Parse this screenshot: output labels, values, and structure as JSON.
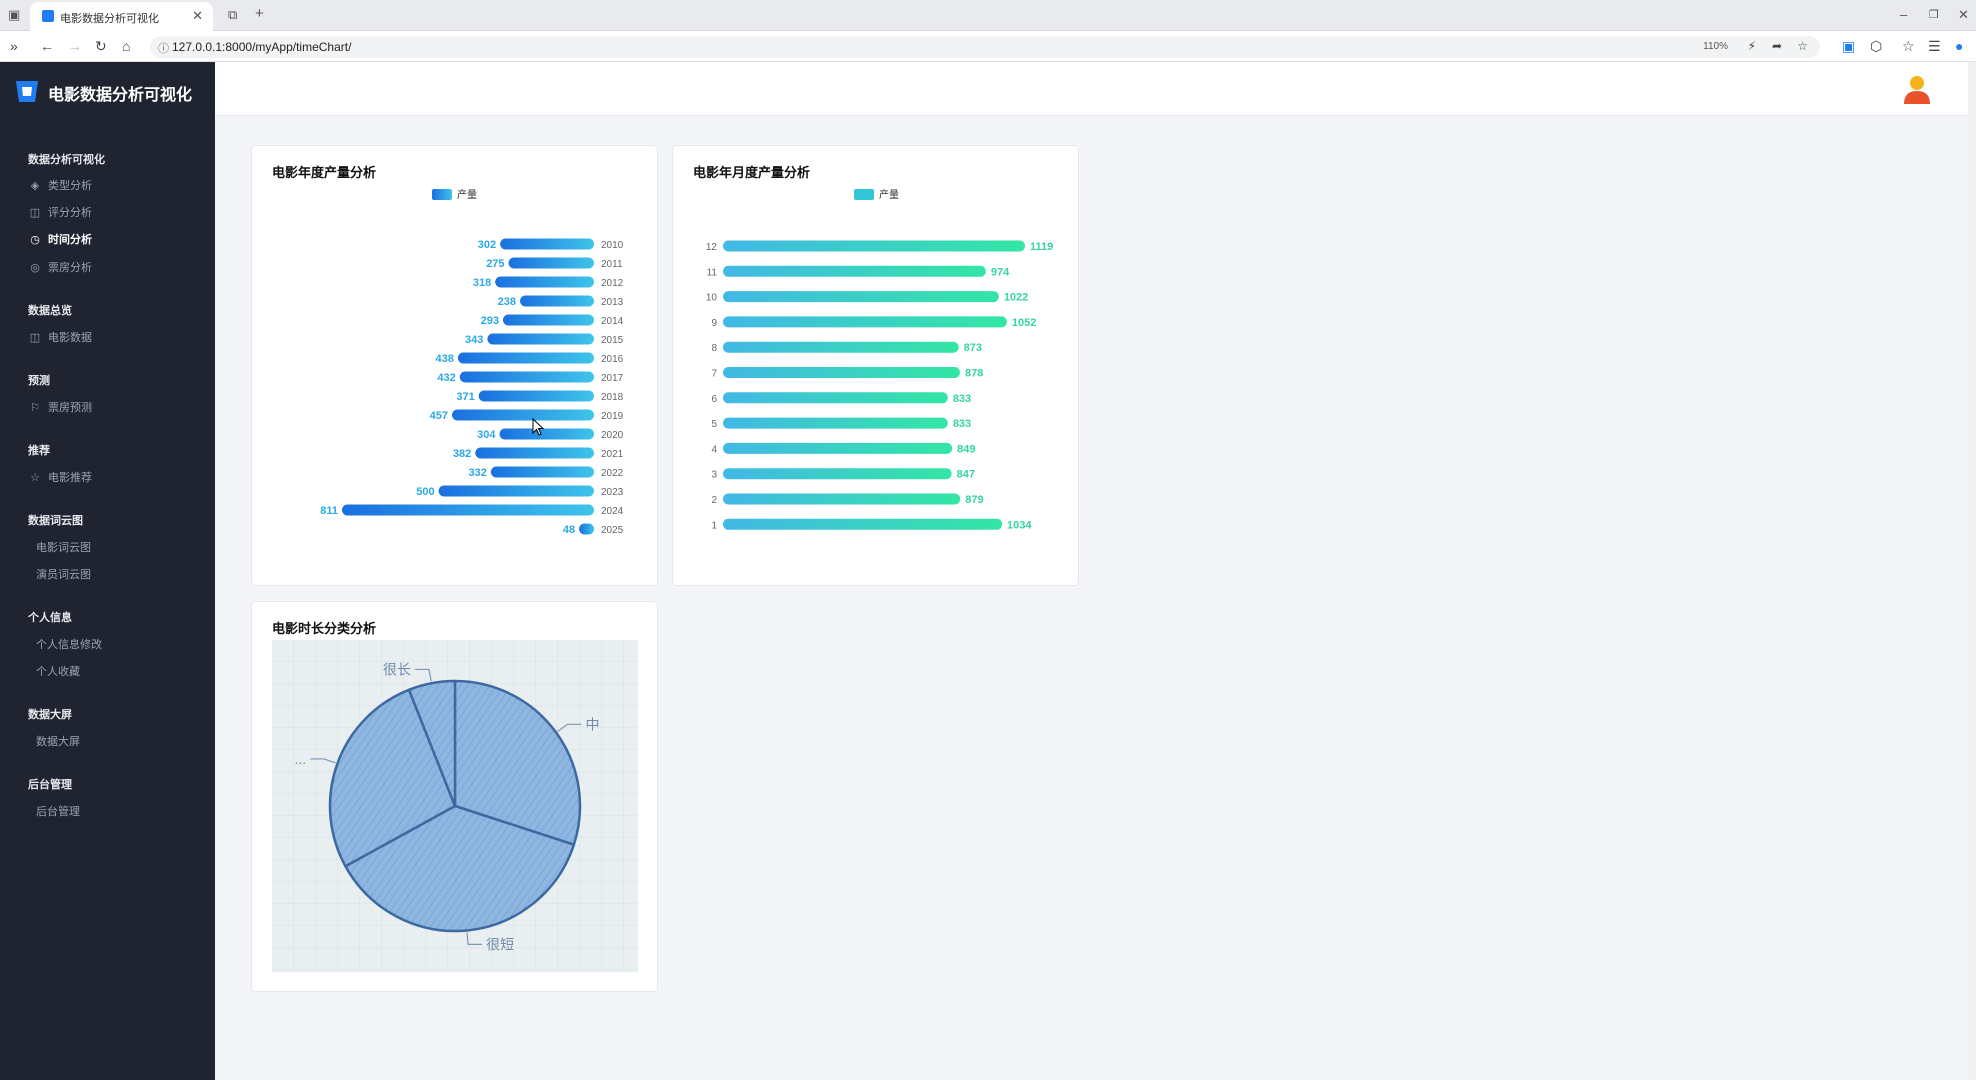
{
  "browser": {
    "tab_title": "电影数据分析可视化",
    "url": "127.0.0.1:8000/myApp/timeChart/",
    "zoom": "110%"
  },
  "sidebar": {
    "brand": "电影数据分析可视化",
    "sections": [
      {
        "title": "数据分析可视化",
        "items": [
          {
            "label": "类型分析",
            "icon": "layers-icon"
          },
          {
            "label": "评分分析",
            "icon": "chart-icon"
          },
          {
            "label": "时间分析",
            "icon": "watch-icon",
            "active": true
          },
          {
            "label": "票房分析",
            "icon": "coin-icon"
          }
        ]
      },
      {
        "title": "数据总览",
        "items": [
          {
            "label": "电影数据",
            "icon": "book-icon"
          }
        ]
      },
      {
        "title": "预测",
        "items": [
          {
            "label": "票房预测",
            "icon": "flag-icon"
          }
        ]
      },
      {
        "title": "推荐",
        "items": [
          {
            "label": "电影推荐",
            "icon": "star-icon"
          }
        ]
      },
      {
        "title": "数据词云图",
        "items": [
          {
            "label": "电影词云图"
          },
          {
            "label": "演员词云图"
          }
        ]
      },
      {
        "title": "个人信息",
        "items": [
          {
            "label": "个人信息修改"
          },
          {
            "label": "个人收藏"
          }
        ]
      },
      {
        "title": "数据大屏",
        "items": [
          {
            "label": "数据大屏"
          }
        ]
      },
      {
        "title": "后台管理",
        "items": [
          {
            "label": "后台管理"
          }
        ]
      }
    ]
  },
  "charts": {
    "yearly": {
      "title": "电影年度产量分析",
      "legend": "产量"
    },
    "monthly": {
      "title": "电影年月度产量分析",
      "legend": "产量"
    },
    "duration": {
      "title": "电影时长分类分析"
    }
  },
  "colors": {
    "yearly_bar_start": "#1a6fe0",
    "yearly_bar_end": "#3ec4ea",
    "yearly_label": "#2aa9e6",
    "monthly_bar_start": "#42b8e6",
    "monthly_bar_end": "#33e6a4",
    "monthly_label": "#33d69f",
    "pie_fill": "#8fb6e0",
    "pie_stroke": "#3c6aa0"
  },
  "chart_data": [
    {
      "type": "bar",
      "orientation": "horizontal",
      "title": "电影年度产量分析",
      "legend": [
        "产量"
      ],
      "categories": [
        "2010",
        "2011",
        "2012",
        "2013",
        "2014",
        "2015",
        "2016",
        "2017",
        "2018",
        "2019",
        "2020",
        "2021",
        "2022",
        "2023",
        "2024",
        "2025"
      ],
      "values": [
        302,
        275,
        318,
        238,
        293,
        343,
        438,
        432,
        371,
        457,
        304,
        382,
        332,
        500,
        811,
        48
      ],
      "x_inverse": true
    },
    {
      "type": "bar",
      "orientation": "horizontal",
      "title": "电影年月度产量分析",
      "legend": [
        "产量"
      ],
      "categories": [
        "12",
        "11",
        "10",
        "9",
        "8",
        "7",
        "6",
        "5",
        "4",
        "3",
        "2",
        "1"
      ],
      "values": [
        1119,
        974,
        1022,
        1052,
        873,
        878,
        833,
        833,
        849,
        847,
        879,
        1034
      ]
    },
    {
      "type": "pie",
      "title": "电影时长分类分析",
      "slices": [
        {
          "label": "中",
          "value": 30
        },
        {
          "label": "很短",
          "value": 37
        },
        {
          "label": "...",
          "value": 27
        },
        {
          "label": "很长",
          "value": 6
        }
      ]
    }
  ]
}
